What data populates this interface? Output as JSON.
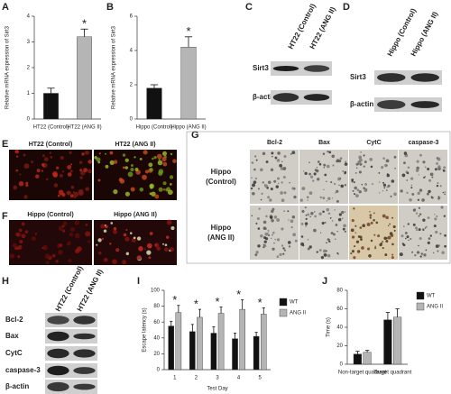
{
  "chart_data": [
    {
      "type": "bar",
      "panel": "A",
      "ylabel": "Relative mRNA expression of Sirt3",
      "categories": [
        "HT22 (Control)",
        "HT22 (ANG II)"
      ],
      "values": [
        1.0,
        3.2
      ],
      "errors": [
        0.2,
        0.3
      ],
      "colors": [
        "#111111",
        "#b5b5b5"
      ],
      "significance": [
        null,
        "*"
      ],
      "ylim": [
        0,
        4
      ],
      "yticks": [
        0,
        1,
        2,
        3,
        4
      ]
    },
    {
      "type": "bar",
      "panel": "B",
      "ylabel": "Relative mRNA expression of Sirt3",
      "categories": [
        "Hippo (Control)",
        "Hippo (ANG II)"
      ],
      "values": [
        1.8,
        4.2
      ],
      "errors": [
        0.2,
        0.6
      ],
      "colors": [
        "#111111",
        "#b5b5b5"
      ],
      "significance": [
        null,
        "*"
      ],
      "ylim": [
        0,
        6
      ],
      "yticks": [
        0,
        2,
        4,
        6
      ]
    },
    {
      "type": "bar",
      "panel": "I",
      "ylabel": "Escape latency (s)",
      "xlabel": "Test Day",
      "categories": [
        "1",
        "2",
        "3",
        "4",
        "5"
      ],
      "series": [
        {
          "name": "WT",
          "color": "#111111",
          "values": [
            55,
            48,
            46,
            39,
            42
          ],
          "errors": [
            6,
            9,
            8,
            7,
            5
          ]
        },
        {
          "name": "ANG II",
          "color": "#b5b5b5",
          "values": [
            72,
            66,
            71,
            76,
            70
          ],
          "errors": [
            9,
            10,
            8,
            12,
            8
          ]
        }
      ],
      "significance": [
        "*",
        "*",
        "*",
        "*",
        "*"
      ],
      "ylim": [
        0,
        100
      ],
      "yticks": [
        0,
        20,
        40,
        60,
        80,
        100
      ]
    },
    {
      "type": "bar",
      "panel": "J",
      "ylabel": "Time (s)",
      "categories": [
        "Non-target quadrant",
        "Target quadrant"
      ],
      "series": [
        {
          "name": "WT",
          "color": "#111111",
          "values": [
            11,
            48
          ],
          "errors": [
            3,
            8
          ]
        },
        {
          "name": "ANG II",
          "color": "#b5b5b5",
          "values": [
            13,
            51
          ],
          "errors": [
            2,
            9
          ]
        }
      ],
      "ylim": [
        0,
        80
      ],
      "yticks": [
        0,
        20,
        40,
        60,
        80
      ]
    }
  ],
  "blots": [
    {
      "panel": "C",
      "lanes": [
        "HT22 (Control)",
        "HT22 (ANG II)"
      ],
      "rows": [
        "Sirt3",
        "β-actin"
      ]
    },
    {
      "panel": "D",
      "lanes": [
        "Hippo (Control)",
        "Hippo (ANG II)"
      ],
      "rows": [
        "Sirt3",
        "β-actin"
      ]
    },
    {
      "panel": "H",
      "lanes": [
        "HT22 (Control)",
        "HT22 (ANG II)"
      ],
      "rows": [
        "Bcl-2",
        "Bax",
        "CytC",
        "caspase-3",
        "β-actin"
      ]
    }
  ],
  "images": [
    {
      "panel": "E",
      "columns": [
        "HT22 (Control)",
        "HT22 (ANG II)"
      ]
    },
    {
      "panel": "F",
      "columns": [
        "Hippo (Control)",
        "Hippo (ANG II)"
      ]
    },
    {
      "panel": "G",
      "columns": [
        "Bcl-2",
        "Bax",
        "CytC",
        "caspase-3"
      ],
      "rows": [
        [
          "Hippo",
          "(Control)"
        ],
        [
          "Hippo",
          "(ANG II)"
        ]
      ]
    }
  ]
}
